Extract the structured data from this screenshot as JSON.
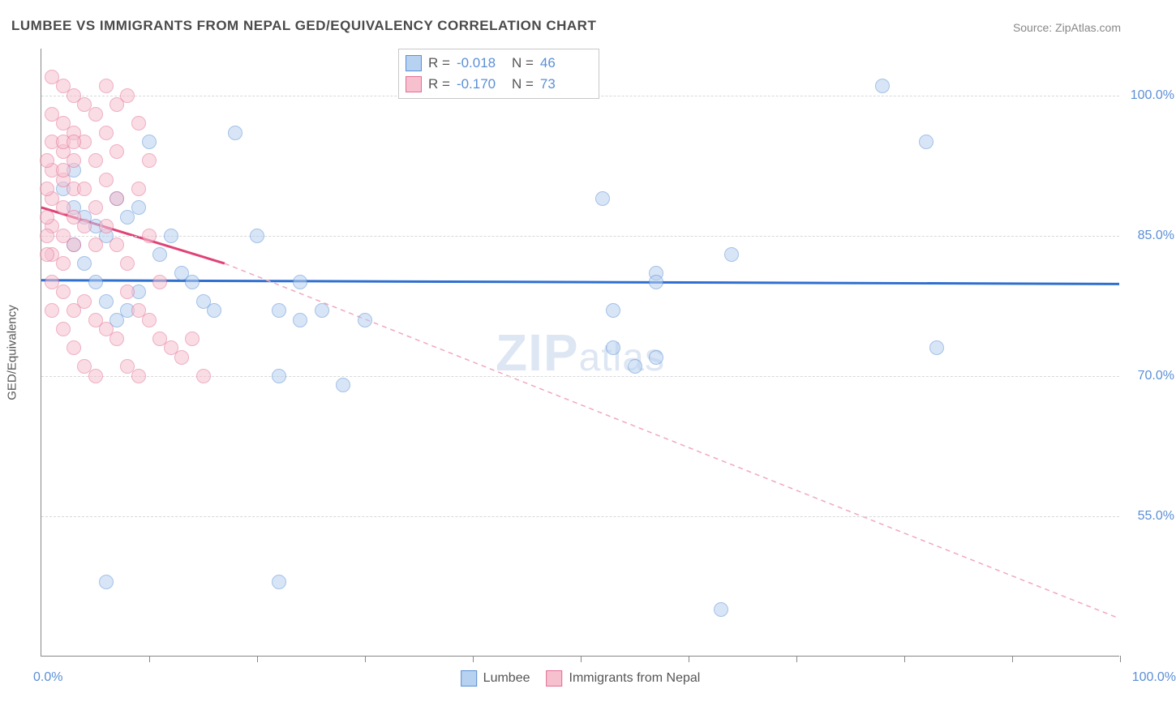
{
  "title": "LUMBEE VS IMMIGRANTS FROM NEPAL GED/EQUIVALENCY CORRELATION CHART",
  "source": "Source: ZipAtlas.com",
  "watermark_main": "ZIP",
  "watermark_sub": "atlas",
  "y_axis_label": "GED/Equivalency",
  "x_min_label": "0.0%",
  "x_max_label": "100.0%",
  "chart": {
    "type": "scatter",
    "xlim": [
      0,
      100
    ],
    "ylim": [
      40,
      105
    ],
    "x_ticks": [
      10,
      20,
      30,
      40,
      50,
      60,
      70,
      80,
      90,
      100
    ],
    "y_gridlines": [
      55,
      70,
      85,
      100
    ],
    "y_tick_labels": [
      "55.0%",
      "70.0%",
      "85.0%",
      "100.0%"
    ],
    "background_color": "#ffffff",
    "grid_color": "#d8d8d8",
    "axis_color": "#888888",
    "tick_label_color": "#5b8fd6",
    "marker_radius": 9,
    "marker_stroke_width": 1.5,
    "series": [
      {
        "name": "Lumbee",
        "fill_color": "#b7d1f0",
        "stroke_color": "#5b8fd6",
        "fill_opacity": 0.55,
        "trend": {
          "y_start": 80.2,
          "y_end": 79.8,
          "color": "#2f6fd0",
          "width": 3,
          "dash": "none",
          "x_start": 0,
          "x_end": 100
        },
        "R": "-0.018",
        "N": "46",
        "points": [
          [
            3,
            88
          ],
          [
            4,
            87
          ],
          [
            5,
            86
          ],
          [
            6,
            85
          ],
          [
            7,
            89
          ],
          [
            8,
            87
          ],
          [
            9,
            88
          ],
          [
            3,
            84
          ],
          [
            4,
            82
          ],
          [
            5,
            80
          ],
          [
            6,
            78
          ],
          [
            7,
            76
          ],
          [
            8,
            77
          ],
          [
            9,
            79
          ],
          [
            10,
            95
          ],
          [
            12,
            85
          ],
          [
            14,
            80
          ],
          [
            15,
            78
          ],
          [
            16,
            77
          ],
          [
            18,
            96
          ],
          [
            20,
            85
          ],
          [
            22,
            77
          ],
          [
            22,
            70
          ],
          [
            24,
            80
          ],
          [
            24,
            76
          ],
          [
            26,
            77
          ],
          [
            28,
            69
          ],
          [
            30,
            76
          ],
          [
            52,
            89
          ],
          [
            53,
            77
          ],
          [
            53,
            73
          ],
          [
            55,
            71
          ],
          [
            57,
            81
          ],
          [
            57,
            80
          ],
          [
            57,
            72
          ],
          [
            64,
            83
          ],
          [
            78,
            101
          ],
          [
            82,
            95
          ],
          [
            83,
            73
          ],
          [
            6,
            48
          ],
          [
            22,
            48
          ],
          [
            63,
            45
          ],
          [
            2,
            90
          ],
          [
            3,
            92
          ],
          [
            11,
            83
          ],
          [
            13,
            81
          ]
        ]
      },
      {
        "name": "Immigrants from Nepal",
        "fill_color": "#f6c0cf",
        "stroke_color": "#e26f93",
        "fill_opacity": 0.55,
        "trend_solid": {
          "x_start": 0,
          "y_start": 88,
          "x_end": 17,
          "y_end": 82,
          "color": "#e04277",
          "width": 3
        },
        "trend_dash": {
          "x_start": 17,
          "y_start": 82,
          "x_end": 100,
          "y_end": 44,
          "color": "#f0a8bd",
          "width": 1.5,
          "dash": "6,5"
        },
        "R": "-0.170",
        "N": "73",
        "points": [
          [
            1,
            102
          ],
          [
            2,
            101
          ],
          [
            3,
            100
          ],
          [
            1,
            98
          ],
          [
            2,
            97
          ],
          [
            3,
            96
          ],
          [
            1,
            95
          ],
          [
            2,
            94
          ],
          [
            3,
            93
          ],
          [
            1,
            92
          ],
          [
            2,
            91
          ],
          [
            3,
            90
          ],
          [
            1,
            89
          ],
          [
            2,
            88
          ],
          [
            3,
            87
          ],
          [
            1,
            86
          ],
          [
            2,
            85
          ],
          [
            3,
            84
          ],
          [
            1,
            83
          ],
          [
            2,
            82
          ],
          [
            4,
            99
          ],
          [
            5,
            98
          ],
          [
            4,
            95
          ],
          [
            5,
            93
          ],
          [
            4,
            90
          ],
          [
            5,
            88
          ],
          [
            4,
            86
          ],
          [
            5,
            84
          ],
          [
            6,
            101
          ],
          [
            7,
            99
          ],
          [
            6,
            96
          ],
          [
            7,
            94
          ],
          [
            6,
            91
          ],
          [
            7,
            89
          ],
          [
            6,
            86
          ],
          [
            7,
            84
          ],
          [
            8,
            100
          ],
          [
            8,
            82
          ],
          [
            9,
            97
          ],
          [
            9,
            90
          ],
          [
            10,
            93
          ],
          [
            10,
            85
          ],
          [
            11,
            80
          ],
          [
            2,
            79
          ],
          [
            3,
            77
          ],
          [
            4,
            78
          ],
          [
            5,
            76
          ],
          [
            6,
            75
          ],
          [
            7,
            74
          ],
          [
            8,
            79
          ],
          [
            9,
            77
          ],
          [
            10,
            76
          ],
          [
            11,
            74
          ],
          [
            12,
            73
          ],
          [
            13,
            72
          ],
          [
            2,
            75
          ],
          [
            3,
            73
          ],
          [
            4,
            71
          ],
          [
            5,
            70
          ],
          [
            1,
            80
          ],
          [
            1,
            77
          ],
          [
            2,
            95
          ],
          [
            2,
            92
          ],
          [
            3,
            95
          ],
          [
            8,
            71
          ],
          [
            9,
            70
          ],
          [
            14,
            74
          ],
          [
            15,
            70
          ],
          [
            0.5,
            87
          ],
          [
            0.5,
            85
          ],
          [
            0.5,
            83
          ],
          [
            0.5,
            90
          ],
          [
            0.5,
            93
          ]
        ]
      }
    ]
  },
  "stat_legend": {
    "rows": [
      {
        "swatch_fill": "#b7d1f0",
        "swatch_border": "#5b8fd6",
        "R_label": "R =",
        "R_val": "-0.018",
        "N_label": "N =",
        "N_val": "46"
      },
      {
        "swatch_fill": "#f6c0cf",
        "swatch_border": "#e26f93",
        "R_label": "R =",
        "R_val": "-0.170",
        "N_label": "N =",
        "N_val": "73"
      }
    ]
  },
  "bottom_legend": {
    "items": [
      {
        "swatch_fill": "#b7d1f0",
        "swatch_border": "#5b8fd6",
        "label": "Lumbee"
      },
      {
        "swatch_fill": "#f6c0cf",
        "swatch_border": "#e26f93",
        "label": "Immigrants from Nepal"
      }
    ]
  }
}
